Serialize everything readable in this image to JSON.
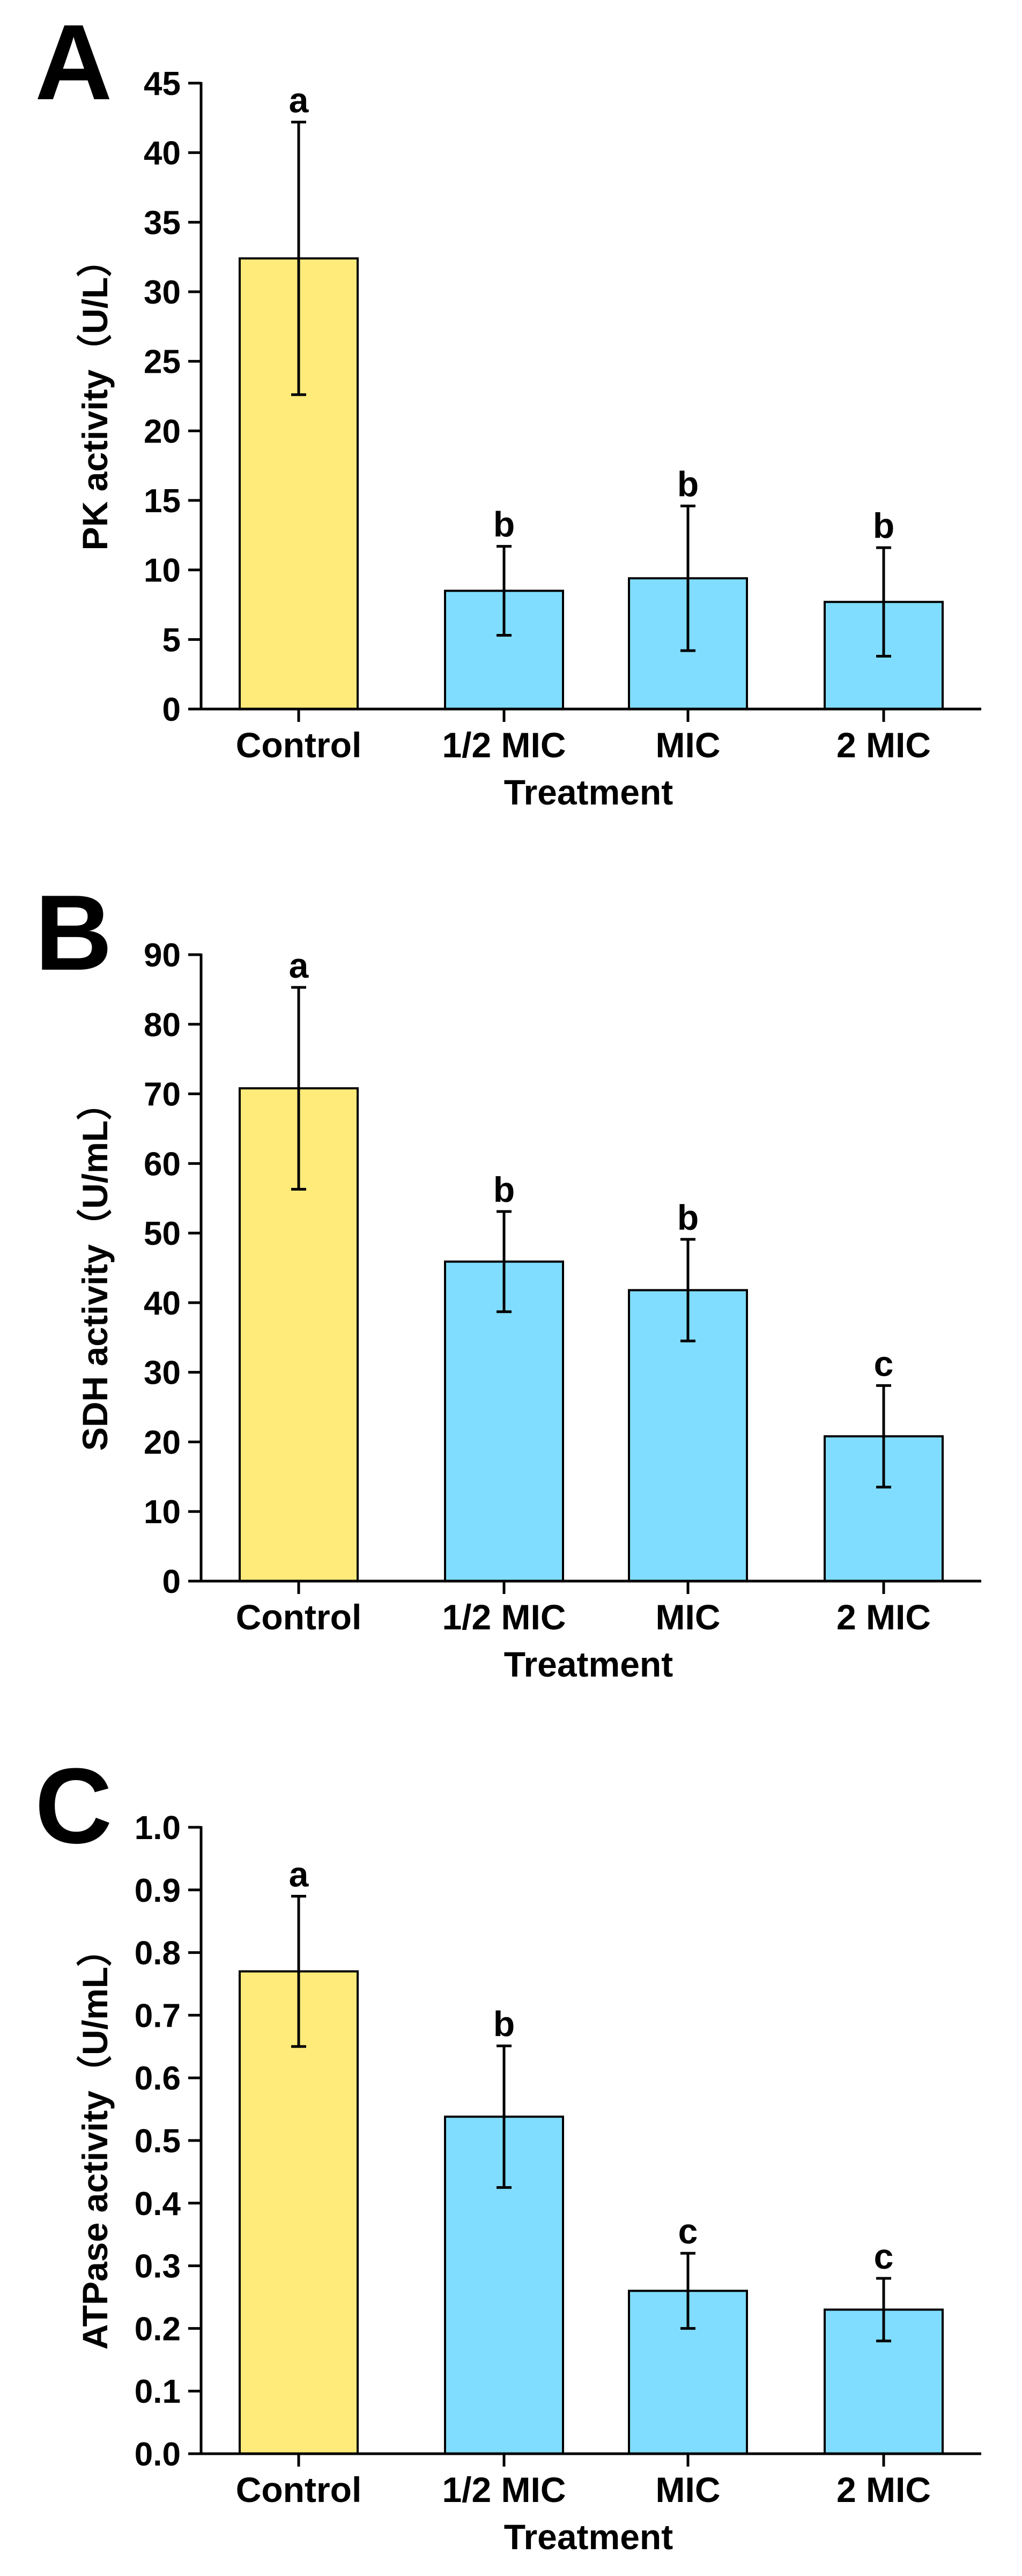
{
  "colors": {
    "control": "#FFEB7A",
    "treated": "#80DDFF",
    "ink": "#000000"
  },
  "chart_data": [
    {
      "type": "bar",
      "panel": "A",
      "categories": [
        "Control",
        "1/2 MIC",
        "MIC",
        "2 MIC"
      ],
      "values": [
        32.4,
        8.5,
        9.4,
        7.7
      ],
      "errors": [
        9.8,
        3.2,
        5.2,
        3.9
      ],
      "significance": [
        "a",
        "b",
        "b",
        "b"
      ],
      "xlabel": "Treatment",
      "ylabel": "PK activity（U/L）",
      "ylim": [
        0,
        45
      ],
      "yticks": [
        0,
        5,
        10,
        15,
        20,
        25,
        30,
        35,
        40,
        45
      ],
      "ytick_labels": [
        "0",
        "5",
        "10",
        "15",
        "20",
        "25",
        "30",
        "35",
        "40",
        "45"
      ]
    },
    {
      "type": "bar",
      "panel": "B",
      "categories": [
        "Control",
        "1/2 MIC",
        "MIC",
        "2 MIC"
      ],
      "values": [
        70.8,
        45.9,
        41.8,
        20.8
      ],
      "errors": [
        14.5,
        7.2,
        7.3,
        7.3
      ],
      "significance": [
        "a",
        "b",
        "b",
        "c"
      ],
      "xlabel": "Treatment",
      "ylabel": "SDH activity（U/mL）",
      "ylim": [
        0,
        90
      ],
      "yticks": [
        0,
        10,
        20,
        30,
        40,
        50,
        60,
        70,
        80,
        90
      ],
      "ytick_labels": [
        "0",
        "10",
        "20",
        "30",
        "40",
        "50",
        "60",
        "70",
        "80",
        "90"
      ]
    },
    {
      "type": "bar",
      "panel": "C",
      "categories": [
        "Control",
        "1/2 MIC",
        "MIC",
        "2 MIC"
      ],
      "values": [
        0.77,
        0.538,
        0.26,
        0.23
      ],
      "errors": [
        0.12,
        0.113,
        0.06,
        0.05
      ],
      "significance": [
        "a",
        "b",
        "c",
        "c"
      ],
      "xlabel": "Treatment",
      "ylabel": "ATPase activity（U/mL）",
      "ylim": [
        0,
        1.0
      ],
      "yticks": [
        0,
        0.1,
        0.2,
        0.3,
        0.4,
        0.5,
        0.6,
        0.7,
        0.8,
        0.9,
        1.0
      ],
      "ytick_labels": [
        "0.0",
        "0.1",
        "0.2",
        "0.3",
        "0.4",
        "0.5",
        "0.6",
        "0.7",
        "0.8",
        "0.9",
        "1.0"
      ]
    }
  ]
}
